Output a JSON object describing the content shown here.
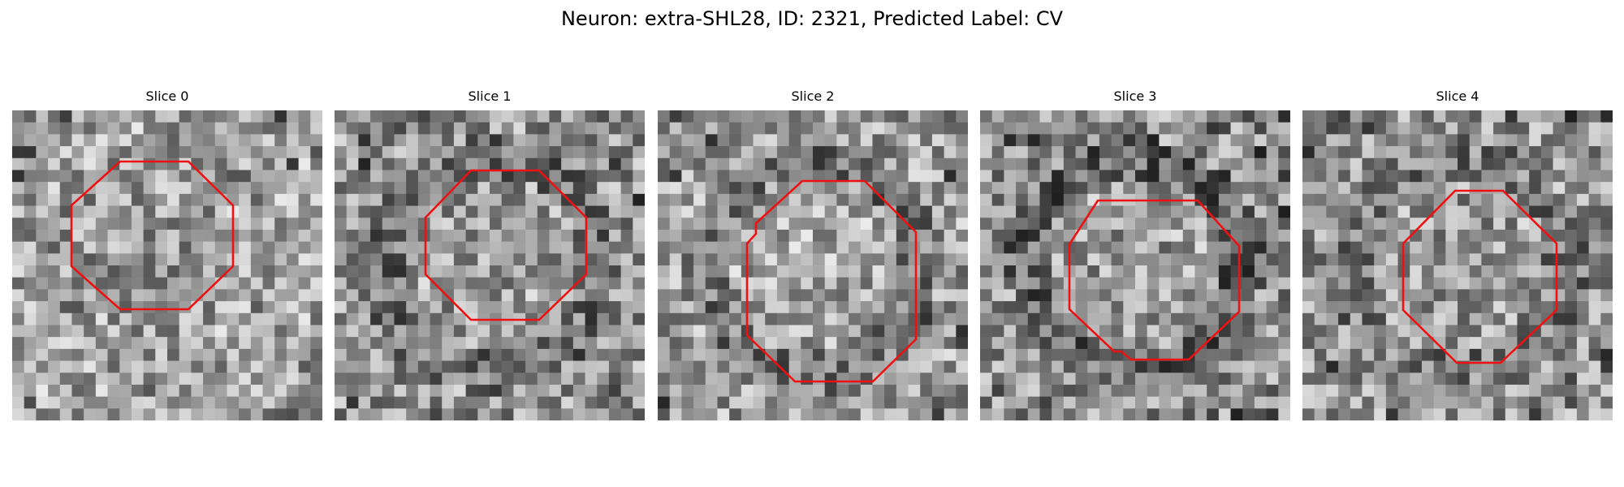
{
  "figure": {
    "title": "Neuron: extra-SHL28, ID: 2321, Predicted Label: CV",
    "outline_color": "#ee1111",
    "grid_size": 26,
    "panels": [
      {
        "title": "Slice 0",
        "seed": 11,
        "base": 165,
        "ring_dark": 0.18,
        "interior": -0.18
      },
      {
        "title": "Slice 1",
        "seed": 23,
        "base": 150,
        "ring_dark": 0.4,
        "interior": 0.12
      },
      {
        "title": "Slice 2",
        "seed": 37,
        "base": 158,
        "ring_dark": 0.45,
        "interior": 0.15
      },
      {
        "title": "Slice 3",
        "seed": 51,
        "base": 145,
        "ring_dark": 0.5,
        "interior": 0.2
      },
      {
        "title": "Slice 4",
        "seed": 67,
        "base": 150,
        "ring_dark": 0.3,
        "interior": 0.1
      }
    ]
  }
}
